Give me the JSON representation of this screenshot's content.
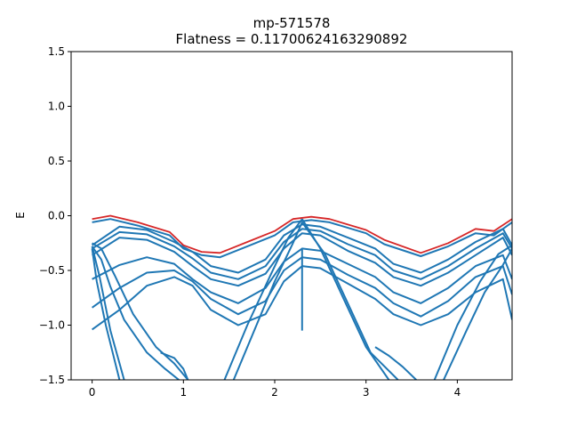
{
  "chart_data": {
    "type": "line",
    "title": "mp-571578",
    "subtitle": "Flatness = 0.11700624163290892",
    "xlabel": "",
    "ylabel": "E",
    "xlim": [
      -0.23,
      4.6
    ],
    "ylim": [
      -1.5,
      1.5
    ],
    "xticks": [
      0,
      1,
      2,
      3,
      4
    ],
    "yticks": [
      -1.5,
      -1.0,
      -0.5,
      0.0,
      0.5,
      1.0,
      1.5
    ],
    "xtick_labels": [
      "0",
      "1",
      "2",
      "3",
      "4"
    ],
    "ytick_labels": [
      "−1.5",
      "−1.0",
      "−0.5",
      "0.0",
      "0.5",
      "1.0",
      "1.5"
    ],
    "grid": false,
    "colors": {
      "bands": "#1f77b4",
      "flat_band": "#d62728"
    },
    "series": [
      {
        "role": "flat-band",
        "x": [
          0,
          0.2,
          0.5,
          0.85,
          1.0,
          1.2,
          1.4,
          1.7,
          2.0,
          2.2,
          2.4,
          2.6,
          3.0,
          3.2,
          3.6,
          3.9,
          4.2,
          4.4,
          4.6
        ],
        "values": [
          -0.03,
          0.0,
          -0.06,
          -0.15,
          -0.27,
          -0.33,
          -0.34,
          -0.24,
          -0.14,
          -0.03,
          -0.01,
          -0.03,
          -0.13,
          -0.22,
          -0.34,
          -0.25,
          -0.12,
          -0.14,
          -0.03
        ]
      },
      {
        "role": "band",
        "x": [
          0,
          0.2,
          0.5,
          0.85,
          1.0,
          1.2,
          1.4,
          1.7,
          2.0,
          2.2,
          2.4,
          2.6,
          3.0,
          3.2,
          3.6,
          3.9,
          4.2,
          4.4,
          4.6
        ],
        "values": [
          -0.06,
          -0.03,
          -0.09,
          -0.18,
          -0.3,
          -0.36,
          -0.38,
          -0.28,
          -0.18,
          -0.06,
          -0.04,
          -0.06,
          -0.16,
          -0.26,
          -0.37,
          -0.28,
          -0.16,
          -0.18,
          -0.06
        ]
      },
      {
        "role": "band",
        "x": [
          0,
          0.3,
          0.6,
          0.9,
          1.1,
          1.3,
          1.6,
          1.9,
          2.1,
          2.3,
          2.5,
          2.8,
          3.1,
          3.3,
          3.6,
          3.9,
          4.2,
          4.5,
          4.6
        ],
        "values": [
          -0.27,
          -0.1,
          -0.13,
          -0.24,
          -0.33,
          -0.46,
          -0.52,
          -0.4,
          -0.18,
          -0.08,
          -0.1,
          -0.2,
          -0.3,
          -0.44,
          -0.52,
          -0.4,
          -0.24,
          -0.12,
          -0.27
        ]
      },
      {
        "role": "band",
        "x": [
          0,
          0.3,
          0.6,
          0.9,
          1.1,
          1.3,
          1.6,
          1.9,
          2.1,
          2.3,
          2.5,
          2.8,
          3.1,
          3.3,
          3.6,
          3.9,
          4.2,
          4.5,
          4.6
        ],
        "values": [
          -0.3,
          -0.15,
          -0.17,
          -0.28,
          -0.39,
          -0.52,
          -0.58,
          -0.46,
          -0.24,
          -0.12,
          -0.14,
          -0.26,
          -0.36,
          -0.5,
          -0.58,
          -0.46,
          -0.3,
          -0.16,
          -0.3
        ]
      },
      {
        "role": "band",
        "x": [
          0,
          0.3,
          0.6,
          0.9,
          1.1,
          1.3,
          1.6,
          1.9,
          2.1,
          2.3,
          2.5,
          2.8,
          3.1,
          3.3,
          3.6,
          3.9,
          4.2,
          4.5,
          4.6
        ],
        "values": [
          -0.36,
          -0.2,
          -0.22,
          -0.33,
          -0.46,
          -0.58,
          -0.64,
          -0.53,
          -0.3,
          -0.16,
          -0.18,
          -0.32,
          -0.43,
          -0.56,
          -0.64,
          -0.52,
          -0.36,
          -0.2,
          -0.36
        ]
      },
      {
        "role": "band",
        "x": [
          0,
          0.3,
          0.6,
          0.9,
          1.1,
          1.3,
          1.6,
          1.9,
          2.1,
          2.3,
          2.5,
          2.8,
          3.1,
          3.3,
          3.6,
          3.9,
          4.2,
          4.5,
          4.6
        ],
        "values": [
          -0.58,
          -0.45,
          -0.38,
          -0.44,
          -0.58,
          -0.7,
          -0.8,
          -0.66,
          -0.42,
          -0.3,
          -0.32,
          -0.44,
          -0.56,
          -0.7,
          -0.8,
          -0.66,
          -0.46,
          -0.36,
          -0.58
        ]
      },
      {
        "role": "band",
        "x": [
          0,
          0.3,
          0.6,
          0.9,
          1.1,
          1.3,
          1.6,
          1.9,
          2.1,
          2.3,
          2.5,
          2.8,
          3.1,
          3.3,
          3.6,
          3.9,
          4.2,
          4.5,
          4.6
        ],
        "values": [
          -0.84,
          -0.66,
          -0.52,
          -0.5,
          -0.6,
          -0.76,
          -0.9,
          -0.78,
          -0.5,
          -0.38,
          -0.4,
          -0.54,
          -0.66,
          -0.8,
          -0.92,
          -0.78,
          -0.56,
          -0.46,
          -0.72
        ]
      },
      {
        "role": "band",
        "x": [
          0,
          0.3,
          0.6,
          0.9,
          1.1,
          1.3,
          1.6,
          1.9,
          2.1,
          2.3,
          2.5,
          2.8,
          3.1,
          3.3,
          3.6,
          3.9,
          4.2,
          4.5,
          4.6
        ],
        "values": [
          -1.04,
          -0.86,
          -0.64,
          -0.56,
          -0.64,
          -0.86,
          -1.0,
          -0.9,
          -0.6,
          -0.46,
          -0.48,
          -0.62,
          -0.76,
          -0.9,
          -1.0,
          -0.9,
          -0.7,
          -0.58,
          -0.95
        ]
      },
      {
        "role": "band",
        "x": [
          0,
          0.1,
          0.25,
          0.45,
          0.7,
          0.9,
          1.05
        ],
        "values": [
          -0.25,
          -0.3,
          -0.55,
          -0.9,
          -1.2,
          -1.35,
          -1.5
        ]
      },
      {
        "role": "band",
        "x": [
          0,
          0.1,
          0.2,
          0.35,
          0.6,
          0.8,
          0.95
        ],
        "values": [
          -0.28,
          -0.4,
          -0.65,
          -0.95,
          -1.25,
          -1.4,
          -1.5
        ]
      },
      {
        "role": "band",
        "x": [
          0,
          0.05,
          0.15,
          0.3
        ],
        "values": [
          -0.3,
          -0.6,
          -1.0,
          -1.5
        ]
      },
      {
        "role": "band",
        "x": [
          0,
          0.08,
          0.2,
          0.35
        ],
        "values": [
          -0.28,
          -0.55,
          -1.05,
          -1.5
        ]
      },
      {
        "role": "band",
        "x": [
          1.45,
          1.7,
          1.95,
          2.15,
          2.3
        ],
        "values": [
          -1.5,
          -1.0,
          -0.55,
          -0.2,
          -0.03
        ]
      },
      {
        "role": "band",
        "x": [
          1.55,
          1.8,
          2.0,
          2.2,
          2.3
        ],
        "values": [
          -1.5,
          -1.0,
          -0.6,
          -0.25,
          -0.06
        ]
      },
      {
        "role": "band",
        "x": [
          2.3,
          2.5,
          2.75,
          3.0,
          3.25
        ],
        "values": [
          -0.03,
          -0.3,
          -0.75,
          -1.2,
          -1.5
        ]
      },
      {
        "role": "band",
        "x": [
          2.3,
          2.55,
          2.8,
          3.05,
          3.35
        ],
        "values": [
          -0.06,
          -0.35,
          -0.8,
          -1.25,
          -1.5
        ]
      },
      {
        "role": "band",
        "x": [
          3.75,
          4.0,
          4.25,
          4.45,
          4.6
        ],
        "values": [
          -1.5,
          -1.0,
          -0.6,
          -0.35,
          -0.27
        ]
      },
      {
        "role": "band",
        "x": [
          3.85,
          4.1,
          4.3,
          4.5,
          4.6
        ],
        "values": [
          -1.5,
          -1.05,
          -0.7,
          -0.45,
          -0.3
        ]
      },
      {
        "role": "band",
        "x": [
          2.3,
          2.3
        ],
        "values": [
          -0.3,
          -1.05
        ]
      },
      {
        "role": "band",
        "x": [
          0.75,
          0.9,
          1.0,
          1.05
        ],
        "values": [
          -1.25,
          -1.3,
          -1.4,
          -1.5
        ]
      },
      {
        "role": "band",
        "x": [
          3.1,
          3.25,
          3.4,
          3.55
        ],
        "values": [
          -1.2,
          -1.28,
          -1.38,
          -1.5
        ]
      }
    ]
  }
}
